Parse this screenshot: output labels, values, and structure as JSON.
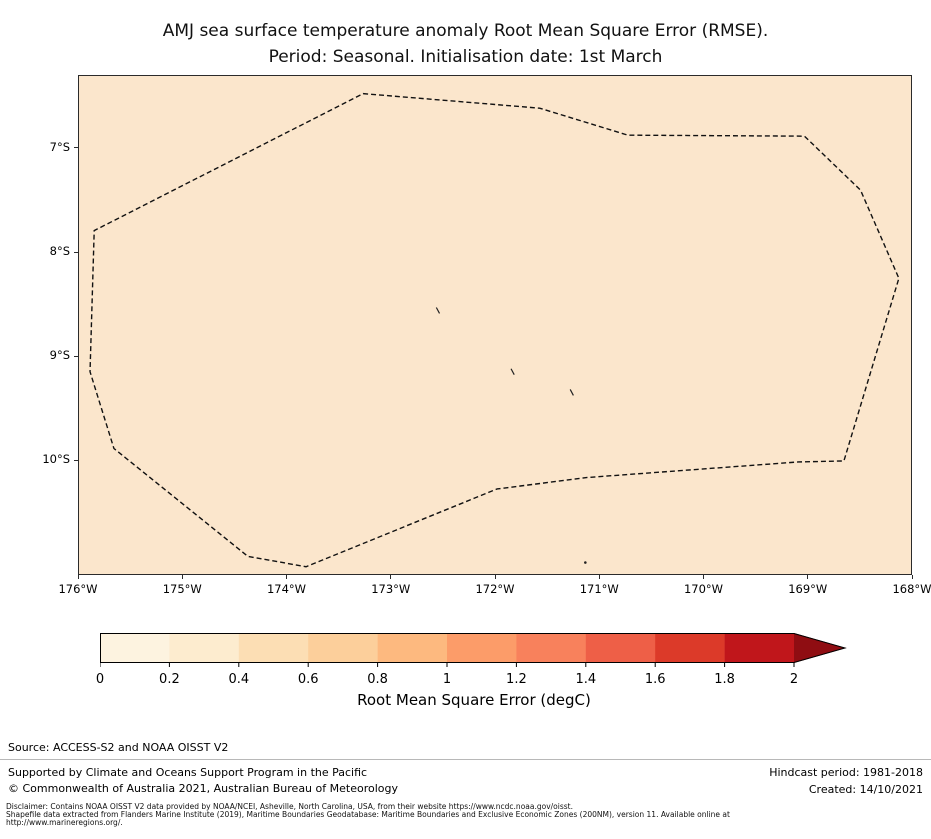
{
  "title": {
    "line1": "AMJ sea surface temperature anomaly Root Mean Square Error (RMSE).",
    "line2": "Period: Seasonal. Initialisation date: 1st March"
  },
  "chart_data": {
    "type": "map",
    "description": "Filled EEZ region map (Tokelau area, South Pacific) showing AMJ sea surface temperature anomaly RMSE; the whole EEZ area is shaded a uniform pale colour of approx 0.4 degC on the colour scale, bounded by a dashed EEZ boundary polygon.",
    "region_fill_color": "#fbe6cc",
    "region_rmse_estimate_degC": 0.4,
    "x_axis": {
      "tick_labels": [
        "176°W",
        "175°W",
        "174°W",
        "173°W",
        "172°W",
        "171°W",
        "170°W",
        "169°W",
        "168°W"
      ],
      "tick_lons_w": [
        176,
        175,
        174,
        173,
        172,
        171,
        170,
        169,
        168
      ],
      "range_lon_w": [
        176.0,
        168.0
      ]
    },
    "y_axis": {
      "tick_labels": [
        "7°S",
        "8°S",
        "9°S",
        "10°S"
      ],
      "tick_lats_s": [
        7,
        8,
        9,
        10
      ],
      "range_lat_s": [
        6.3,
        11.1
      ]
    },
    "boundary_style": "dashed",
    "boundary_lonlat_ws": [
      [
        173.27,
        6.47
      ],
      [
        171.57,
        6.61
      ],
      [
        170.72,
        6.87
      ],
      [
        169.02,
        6.88
      ],
      [
        168.48,
        7.4
      ],
      [
        168.11,
        8.25
      ],
      [
        168.64,
        10.01
      ],
      [
        169.08,
        10.02
      ],
      [
        171.11,
        10.17
      ],
      [
        171.98,
        10.28
      ],
      [
        173.82,
        11.03
      ],
      [
        174.38,
        10.93
      ],
      [
        175.67,
        9.89
      ],
      [
        175.9,
        9.15
      ],
      [
        175.86,
        7.79
      ]
    ],
    "islands_lonlat_ws": [
      [
        172.55,
        8.56
      ],
      [
        171.83,
        9.15
      ],
      [
        171.26,
        9.35
      ],
      [
        171.13,
        10.99
      ]
    ],
    "colorbar": {
      "label": "Root Mean Square Error (degC)",
      "tick_labels": [
        "0",
        "0.2",
        "0.4",
        "0.6",
        "0.8",
        "1",
        "1.2",
        "1.4",
        "1.6",
        "1.8",
        "2"
      ],
      "tick_values": [
        0,
        0.2,
        0.4,
        0.6,
        0.8,
        1,
        1.2,
        1.4,
        1.6,
        1.8,
        2
      ],
      "segment_colors": [
        "#fdf3e0",
        "#fdeccf",
        "#fcdeb4",
        "#fccf9b",
        "#fdb97f",
        "#fc9c69",
        "#f8815c",
        "#ee5f47",
        "#dc3a29",
        "#c0161b"
      ],
      "over_color": "#8f0d12",
      "extend": "max"
    }
  },
  "footer": {
    "source": "Source: ACCESS-S2 and NOAA OISST V2",
    "supported": "Supported by Climate and Oceans Support Program in the Pacific",
    "copyright": "© Commonwealth of Australia 2021, Australian Bureau of Meteorology",
    "hindcast": "Hindcast period: 1981-2018",
    "created": "Created: 14/10/2021",
    "disclaimer_line1": "Disclaimer: Contains NOAA OISST V2 data provided by NOAA/NCEI, Asheville, North Carolina, USA, from their website https://www.ncdc.noaa.gov/oisst.",
    "disclaimer_line2": "Shapefile data extracted from Flanders Marine Institute (2019), Maritime Boundaries Geodatabase: Maritime Boundaries and Exclusive Economic Zones (200NM), version 11. Available online at",
    "disclaimer_line3": "http://www.marineregions.org/."
  }
}
